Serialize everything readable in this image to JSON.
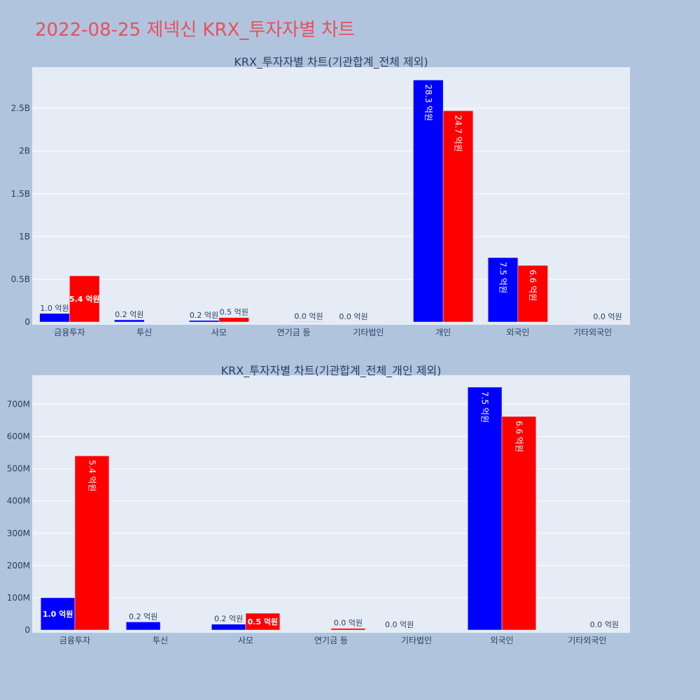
{
  "page": {
    "title": "2022-08-25 제넥신 KRX_투자자별 차트"
  },
  "colors": {
    "background": "#b0c4de",
    "plot_bg": "#e5ecf6",
    "buy": "#0000ff",
    "sell": "#ff0000",
    "title": "#e8505b",
    "text": "#2a3f5f"
  },
  "chart_data": [
    {
      "type": "bar",
      "title": "KRX_투자자별 차트(기관합계_전체 제외)",
      "categories": [
        "금융투자",
        "투신",
        "사모",
        "연기금 등",
        "기타법인",
        "개인",
        "외국인",
        "기타외국인"
      ],
      "series": [
        {
          "color": "#0000ff",
          "values": [
            100000000,
            25000000,
            18000000,
            0,
            0,
            2830000000,
            753000000,
            0
          ],
          "labels": [
            "1.0 억원",
            "0.2 억원",
            "0.2 억원",
            "",
            "0.0 억원",
            "28.3 억원",
            "7.5 억원",
            ""
          ]
        },
        {
          "color": "#ff0000",
          "values": [
            540000000,
            0,
            52000000,
            5000000,
            0,
            2470000000,
            662000000,
            0
          ],
          "labels": [
            "5.4 억원",
            "",
            "0.5 억원",
            "0.0 억원",
            "",
            "24.7 억원",
            "6.6 억원",
            "0.0 억원"
          ]
        }
      ],
      "ylim": [
        0,
        2980000000
      ],
      "yticks": [
        {
          "value": 0,
          "label": "0"
        },
        {
          "value": 500000000,
          "label": "0.5B"
        },
        {
          "value": 1000000000,
          "label": "1B"
        },
        {
          "value": 1500000000,
          "label": "1.5B"
        },
        {
          "value": 2000000000,
          "label": "2B"
        },
        {
          "value": 2500000000,
          "label": "2.5B"
        }
      ],
      "grid": true
    },
    {
      "type": "bar",
      "title": "KRX_투자자별 차트(기관합계_전체_개인 제외)",
      "categories": [
        "금융투자",
        "투신",
        "사모",
        "연기금 등",
        "기타법인",
        "외국인",
        "기타외국인"
      ],
      "series": [
        {
          "color": "#0000ff",
          "values": [
            100000000,
            25000000,
            18000000,
            0,
            0,
            753000000,
            0
          ],
          "labels": [
            "1.0 억원",
            "0.2 억원",
            "0.2 억원",
            "",
            "0.0 억원",
            "7.5 억원",
            ""
          ]
        },
        {
          "color": "#ff0000",
          "values": [
            540000000,
            0,
            52000000,
            5000000,
            0,
            662000000,
            0
          ],
          "labels": [
            "5.4 억원",
            "",
            "0.5 억원",
            "0.0 억원",
            "",
            "6.6 억원",
            "0.0 억원"
          ]
        }
      ],
      "ylim": [
        0,
        790000000
      ],
      "yticks": [
        {
          "value": 0,
          "label": "0"
        },
        {
          "value": 100000000,
          "label": "100M"
        },
        {
          "value": 200000000,
          "label": "200M"
        },
        {
          "value": 300000000,
          "label": "300M"
        },
        {
          "value": 400000000,
          "label": "400M"
        },
        {
          "value": 500000000,
          "label": "500M"
        },
        {
          "value": 600000000,
          "label": "600M"
        },
        {
          "value": 700000000,
          "label": "700M"
        }
      ],
      "grid": true
    }
  ]
}
